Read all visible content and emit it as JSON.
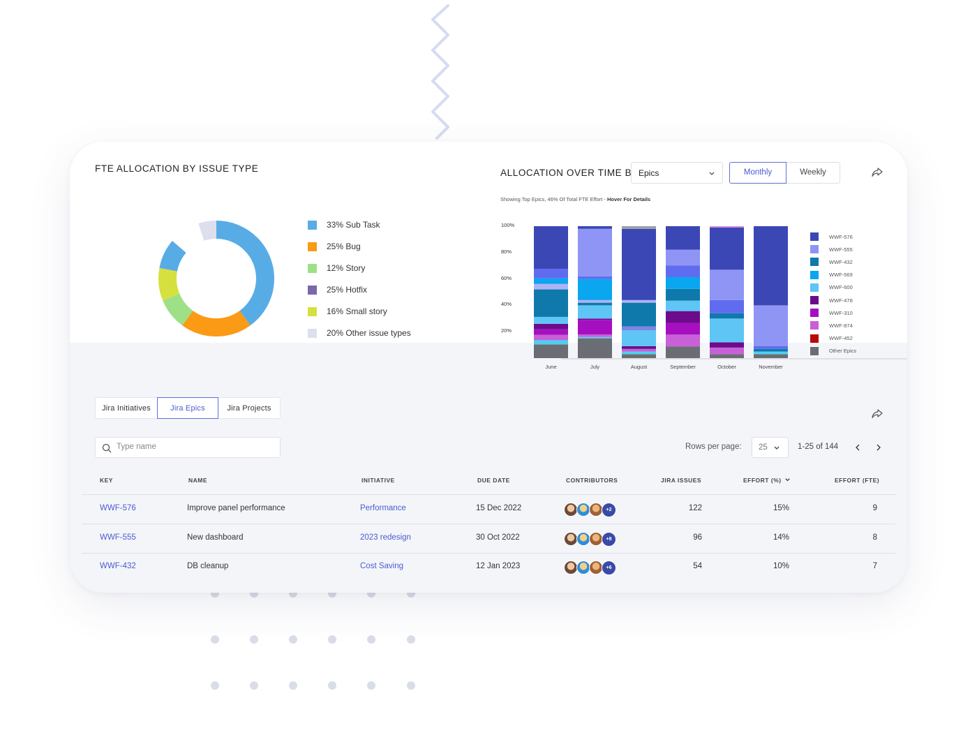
{
  "left_panel": {
    "title": "FTE ALLOCATION BY ISSUE TYPE",
    "legend": [
      {
        "label": "33% Sub Task",
        "color": "#58ace6"
      },
      {
        "label": "25% Bug",
        "color": "#fb9a14"
      },
      {
        "label": "12% Story",
        "color": "#9ee087"
      },
      {
        "label": "25% Hotfix",
        "color": "#7a68a8"
      },
      {
        "label": "16% Small story",
        "color": "#d6e03e"
      },
      {
        "label": "20% Other issue types",
        "color": "#dddfee"
      }
    ]
  },
  "right_panel": {
    "title": "ALLOCATION OVER TIME BY",
    "group_select": {
      "value": "Epics"
    },
    "toggle": {
      "monthly": "Monthly",
      "weekly": "Weekly",
      "selected": "Monthly"
    },
    "subtitle_prefix": "Showing Top Epics, 46% Of Total FTE Effort - ",
    "subtitle_bold": "Hover For Details"
  },
  "chart_data": {
    "type": "bar",
    "stacked": true,
    "normalized_percent": true,
    "categories": [
      "June",
      "July",
      "August",
      "September",
      "October",
      "November"
    ],
    "y_ticks": [
      "100%",
      "80%",
      "60%",
      "40%",
      "20%"
    ],
    "ylim": [
      0,
      100
    ],
    "legend_position": "right",
    "series": [
      {
        "name": "WWF-576",
        "color": "#3c47b6",
        "values": [
          31,
          2,
          54,
          18,
          32,
          60
        ]
      },
      {
        "name": "WWF-555",
        "color": "#8e95f4",
        "values": [
          0,
          36,
          0,
          12,
          23,
          31
        ]
      },
      {
        "name": "WWF-432",
        "color": "#0f79ab",
        "values": [
          20,
          2,
          18,
          9,
          4,
          2
        ]
      },
      {
        "name": "WWF-569",
        "color": "#0aa6ef",
        "values": [
          4,
          16,
          0,
          9,
          0,
          0
        ]
      },
      {
        "name": "WWF-600",
        "color": "#5fc5f5",
        "values": [
          5,
          10,
          12,
          8,
          18,
          0
        ]
      },
      {
        "name": "WWF-478",
        "color": "#6c0b8c",
        "values": [
          4,
          1,
          2,
          9,
          4,
          0
        ]
      },
      {
        "name": "WWF-310",
        "color": "#a60fc0",
        "values": [
          4,
          11,
          0,
          9,
          0,
          0
        ]
      },
      {
        "name": "WWF-874",
        "color": "#c860d7",
        "values": [
          4,
          2,
          2,
          9,
          5,
          0
        ]
      },
      {
        "name": "WWF-452",
        "color": "#b80a0a",
        "values": [
          0,
          0,
          0,
          0,
          0,
          0
        ]
      },
      {
        "name": "Other Epics",
        "color": "#6b6d74",
        "values": [
          10,
          15,
          3,
          9,
          3,
          3
        ]
      },
      {
        "name": "",
        "color": "#5f6cf0",
        "values": [
          7,
          2,
          0,
          9,
          10,
          2
        ]
      },
      {
        "name": "",
        "color": "#aeb3f6",
        "values": [
          4,
          2,
          2,
          0,
          0,
          0
        ]
      },
      {
        "name": "",
        "color": "#7d84e4",
        "values": [
          0,
          0,
          3,
          0,
          0,
          0
        ]
      },
      {
        "name": "",
        "color": "#d48be0",
        "values": [
          0,
          0,
          0,
          0,
          1,
          0
        ]
      },
      {
        "name": "",
        "color": "#9aa0a8",
        "values": [
          0,
          0,
          2,
          0,
          0,
          0
        ]
      },
      {
        "name": "",
        "color": "#4bd1f0",
        "values": [
          3,
          1,
          2,
          0,
          0,
          2
        ]
      }
    ]
  },
  "tabs": [
    {
      "label": "Jira Initiatives",
      "active": false
    },
    {
      "label": "Jira Epics",
      "active": true
    },
    {
      "label": "Jira Projects",
      "active": false
    }
  ],
  "search": {
    "placeholder": "Type name"
  },
  "pagination": {
    "rows_label": "Rows per page:",
    "rows_value": "25",
    "range": "1-25 of 144"
  },
  "table": {
    "headers": {
      "key": "KEY",
      "name": "NAME",
      "initiative": "INITIATIVE",
      "due_date": "DUE DATE",
      "contributors": "CONTRIBUTORS",
      "jira_issues": "JIRA ISSUES",
      "effort_pct": "EFFORT (%)",
      "effort_fte": "EFFORT (FTE)"
    },
    "rows": [
      {
        "key": "WWF-576",
        "name": "Improve panel performance",
        "initiative": "Performance",
        "due_date": "15 Dec 2022",
        "more": "+2",
        "jira_issues": "122",
        "effort_pct": "15%",
        "effort_fte": "9"
      },
      {
        "key": "WWF-555",
        "name": "New dashboard",
        "initiative": "2023 redesign",
        "due_date": "30 Oct 2022",
        "more": "+8",
        "jira_issues": "96",
        "effort_pct": "14%",
        "effort_fte": "8"
      },
      {
        "key": "WWF-432",
        "name": "DB cleanup",
        "initiative": "Cost Saving",
        "due_date": "12 Jan 2023",
        "more": "+6",
        "jira_issues": "54",
        "effort_pct": "10%",
        "effort_fte": "7"
      }
    ]
  }
}
